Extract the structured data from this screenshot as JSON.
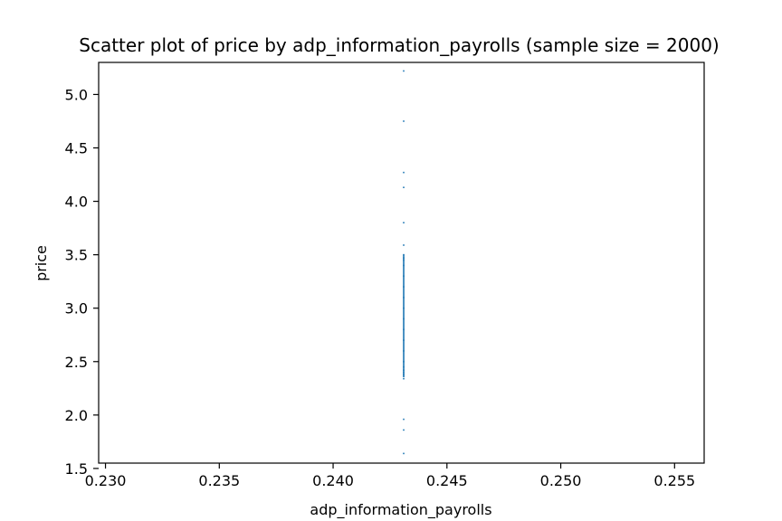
{
  "chart_data": {
    "type": "scatter",
    "title": "Scatter plot of price by adp_information_payrolls (sample size = 2000)",
    "xlabel": "adp_information_payrolls",
    "ylabel": "price",
    "xlim": [
      0.2297,
      0.2563
    ],
    "ylim": [
      1.55,
      5.3
    ],
    "xticks": [
      0.23,
      0.235,
      0.24,
      0.245,
      0.25,
      0.255
    ],
    "xtick_labels": [
      "0.230",
      "0.235",
      "0.240",
      "0.245",
      "0.250",
      "0.255"
    ],
    "yticks": [
      1.5,
      2.0,
      2.5,
      3.0,
      3.5,
      4.0,
      4.5,
      5.0
    ],
    "ytick_labels": [
      "1.5",
      "2.0",
      "2.5",
      "3.0",
      "3.5",
      "4.0",
      "4.5",
      "5.0"
    ],
    "grid": false,
    "marker_color": "#1f77b4",
    "series": [
      {
        "x_constant": 0.2431,
        "range_segment": [
          2.36,
          3.5
        ],
        "y_points": [
          5.22,
          4.75,
          4.27,
          4.13,
          3.8,
          3.59,
          3.5,
          3.47,
          3.45,
          3.4,
          3.3,
          3.2,
          3.1,
          3.0,
          2.9,
          2.8,
          2.7,
          2.6,
          2.5,
          2.45,
          2.42,
          2.4,
          2.38,
          2.36,
          2.34,
          1.96,
          1.86,
          1.64
        ]
      }
    ]
  }
}
